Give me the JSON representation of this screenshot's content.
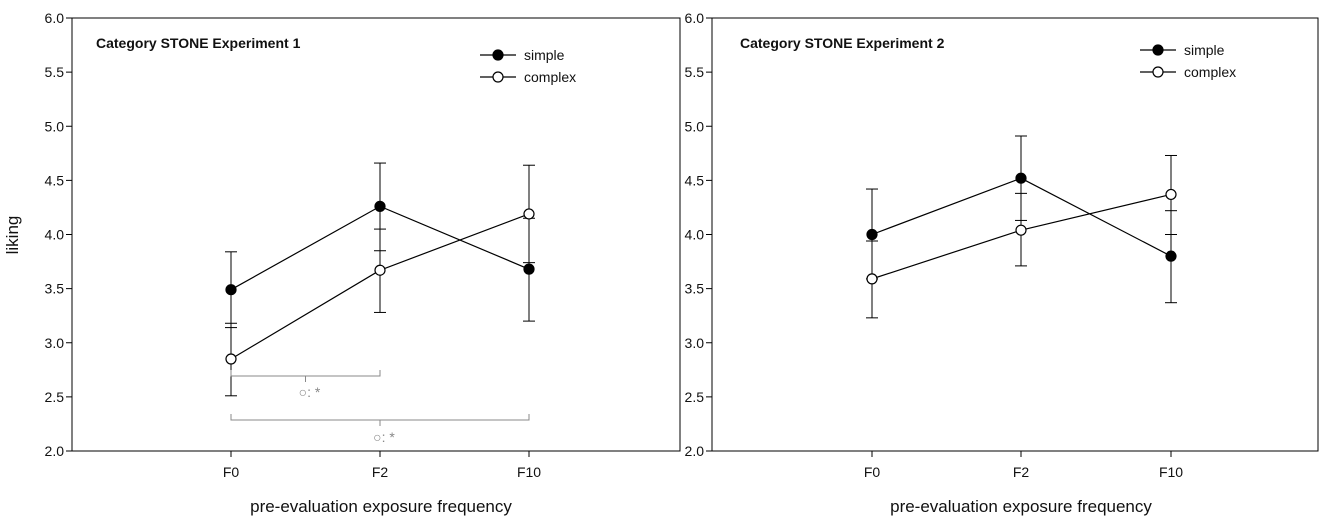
{
  "chart_data": [
    {
      "type": "line",
      "title": "Category STONE Experiment 1",
      "xlabel": "pre-evaluation exposure frequency",
      "ylabel": "liking",
      "ylim": [
        2.0,
        6.0
      ],
      "yticks": [
        "2.0",
        "2.5",
        "3.0",
        "3.5",
        "4.0",
        "4.5",
        "5.0",
        "5.5",
        "6.0"
      ],
      "categories": [
        "F0",
        "F2",
        "F10"
      ],
      "legend_position": "top-right",
      "series": [
        {
          "name": "simple",
          "marker": "filled-circle",
          "values": [
            3.49,
            4.26,
            3.68
          ],
          "err_low": [
            3.14,
            3.85,
            3.2
          ],
          "err_high": [
            3.84,
            4.66,
            4.15
          ]
        },
        {
          "name": "complex",
          "marker": "open-circle",
          "values": [
            2.85,
            3.67,
            4.19
          ],
          "err_low": [
            2.51,
            3.28,
            3.74
          ],
          "err_high": [
            3.18,
            4.05,
            4.64
          ]
        }
      ],
      "annotations": [
        {
          "from": "F0",
          "to": "F2",
          "text": "○: *"
        },
        {
          "from": "F0",
          "to": "F10",
          "text": "○: *"
        }
      ]
    },
    {
      "type": "line",
      "title": "Category STONE Experiment 2",
      "xlabel": "pre-evaluation exposure frequency",
      "ylabel": "",
      "ylim": [
        2.0,
        6.0
      ],
      "yticks": [
        "2.0",
        "2.5",
        "3.0",
        "3.5",
        "4.0",
        "4.5",
        "5.0",
        "5.5",
        "6.0"
      ],
      "categories": [
        "F0",
        "F2",
        "F10"
      ],
      "legend_position": "top-right",
      "series": [
        {
          "name": "simple",
          "marker": "filled-circle",
          "values": [
            4.0,
            4.52,
            3.8
          ],
          "err_low": [
            3.59,
            4.13,
            3.37
          ],
          "err_high": [
            4.42,
            4.91,
            4.22
          ]
        },
        {
          "name": "complex",
          "marker": "open-circle",
          "values": [
            3.59,
            4.04,
            4.37
          ],
          "err_low": [
            3.23,
            3.71,
            4.0
          ],
          "err_high": [
            3.94,
            4.38,
            4.73
          ]
        }
      ],
      "annotations": []
    }
  ]
}
